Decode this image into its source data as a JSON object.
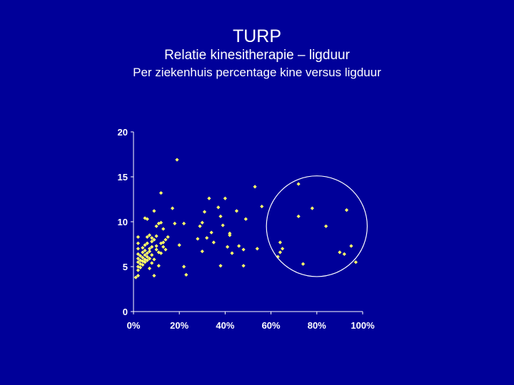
{
  "slide": {
    "title": "TURP",
    "subtitle": "Relatie kinesitherapie – ligduur",
    "subtitle2": "Per ziekenhuis percentage kine versus ligduur"
  },
  "colors": {
    "background": "#000099",
    "axis": "#ffffff",
    "points": "#ffff66",
    "circle": "#ffffff"
  },
  "chart_data": {
    "type": "scatter",
    "xlim": [
      0,
      1
    ],
    "ylim": [
      0,
      20
    ],
    "xticks": [
      0,
      0.2,
      0.4,
      0.6,
      0.8,
      1.0
    ],
    "xtick_labels": [
      "0%",
      "20%",
      "40%",
      "60%",
      "80%",
      "100%"
    ],
    "yticks": [
      0,
      5,
      10,
      15,
      20
    ],
    "ytick_labels": [
      "0",
      "5",
      "10",
      "15",
      "20"
    ],
    "grid": false,
    "annotation": {
      "shape": "circle",
      "center": [
        0.8,
        9.5
      ],
      "radius_x": 0.22,
      "note": "encircles high-kine hospitals"
    },
    "points": [
      [
        0.02,
        8.3
      ],
      [
        0.02,
        7.6
      ],
      [
        0.02,
        7.0
      ],
      [
        0.02,
        6.4
      ],
      [
        0.02,
        5.9
      ],
      [
        0.02,
        5.5
      ],
      [
        0.02,
        5.0
      ],
      [
        0.02,
        4.6
      ],
      [
        0.02,
        4.0
      ],
      [
        0.01,
        3.8
      ],
      [
        0.03,
        6.2
      ],
      [
        0.03,
        5.7
      ],
      [
        0.03,
        5.3
      ],
      [
        0.03,
        4.9
      ],
      [
        0.04,
        6.6
      ],
      [
        0.04,
        6.0
      ],
      [
        0.04,
        5.6
      ],
      [
        0.04,
        5.2
      ],
      [
        0.04,
        7.1
      ],
      [
        0.05,
        10.4
      ],
      [
        0.05,
        6.8
      ],
      [
        0.05,
        6.3
      ],
      [
        0.05,
        5.8
      ],
      [
        0.05,
        7.4
      ],
      [
        0.05,
        5.5
      ],
      [
        0.06,
        10.3
      ],
      [
        0.06,
        8.3
      ],
      [
        0.06,
        7.6
      ],
      [
        0.06,
        6.5
      ],
      [
        0.06,
        6.1
      ],
      [
        0.06,
        5.7
      ],
      [
        0.07,
        8.5
      ],
      [
        0.07,
        7.0
      ],
      [
        0.07,
        6.7
      ],
      [
        0.07,
        5.9
      ],
      [
        0.07,
        4.8
      ],
      [
        0.08,
        8.2
      ],
      [
        0.08,
        7.8
      ],
      [
        0.08,
        7.2
      ],
      [
        0.08,
        6.3
      ],
      [
        0.08,
        5.4
      ],
      [
        0.09,
        11.2
      ],
      [
        0.09,
        8.0
      ],
      [
        0.09,
        5.8
      ],
      [
        0.09,
        4.0
      ],
      [
        0.1,
        9.5
      ],
      [
        0.1,
        8.4
      ],
      [
        0.1,
        7.3
      ],
      [
        0.1,
        6.9
      ],
      [
        0.11,
        9.8
      ],
      [
        0.11,
        6.6
      ],
      [
        0.11,
        5.1
      ],
      [
        0.12,
        9.9
      ],
      [
        0.12,
        13.2
      ],
      [
        0.12,
        7.6
      ],
      [
        0.12,
        6.5
      ],
      [
        0.13,
        9.2
      ],
      [
        0.13,
        7.7
      ],
      [
        0.13,
        7.2
      ],
      [
        0.14,
        8.0
      ],
      [
        0.14,
        6.9
      ],
      [
        0.15,
        8.3
      ],
      [
        0.17,
        11.5
      ],
      [
        0.18,
        9.8
      ],
      [
        0.19,
        16.9
      ],
      [
        0.2,
        7.4
      ],
      [
        0.22,
        9.8
      ],
      [
        0.22,
        5.0
      ],
      [
        0.23,
        4.1
      ],
      [
        0.28,
        8.1
      ],
      [
        0.29,
        9.5
      ],
      [
        0.3,
        9.9
      ],
      [
        0.3,
        6.7
      ],
      [
        0.31,
        11.1
      ],
      [
        0.32,
        8.2
      ],
      [
        0.33,
        12.6
      ],
      [
        0.34,
        8.8
      ],
      [
        0.35,
        7.7
      ],
      [
        0.37,
        11.6
      ],
      [
        0.38,
        10.6
      ],
      [
        0.38,
        5.1
      ],
      [
        0.39,
        9.6
      ],
      [
        0.4,
        12.6
      ],
      [
        0.41,
        7.2
      ],
      [
        0.42,
        8.5
      ],
      [
        0.42,
        8.7
      ],
      [
        0.43,
        6.5
      ],
      [
        0.45,
        11.2
      ],
      [
        0.46,
        7.3
      ],
      [
        0.48,
        5.1
      ],
      [
        0.48,
        6.9
      ],
      [
        0.49,
        10.3
      ],
      [
        0.53,
        13.9
      ],
      [
        0.54,
        7.0
      ],
      [
        0.56,
        11.7
      ],
      [
        0.63,
        6.1
      ],
      [
        0.64,
        6.6
      ],
      [
        0.64,
        7.7
      ],
      [
        0.65,
        7.0
      ],
      [
        0.72,
        14.2
      ],
      [
        0.72,
        10.6
      ],
      [
        0.74,
        5.3
      ],
      [
        0.78,
        11.5
      ],
      [
        0.84,
        9.5
      ],
      [
        0.9,
        6.6
      ],
      [
        0.92,
        6.4
      ],
      [
        0.93,
        11.3
      ],
      [
        0.95,
        7.3
      ],
      [
        0.97,
        5.5
      ]
    ]
  }
}
